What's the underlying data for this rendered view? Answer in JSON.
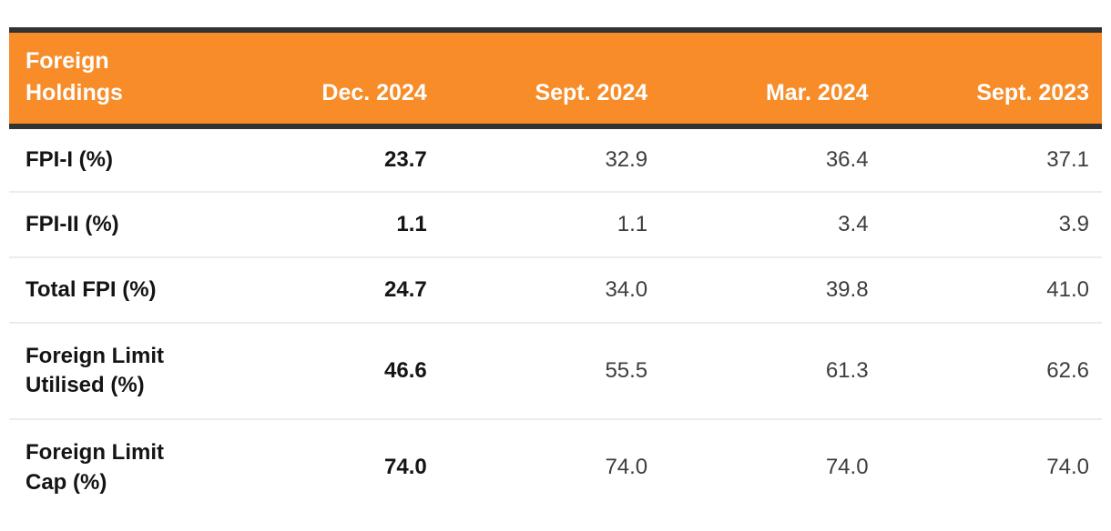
{
  "colors": {
    "header_bg": "#F78C28",
    "header_border": "#333333",
    "row_divider": "#ECECEC",
    "text_strong": "#141414",
    "text_regular": "#3D3D3D",
    "header_text": "#FFFFFF"
  },
  "table": {
    "header": [
      "Foreign Holdings",
      "Dec. 2024",
      "Sept. 2024",
      "Mar. 2024",
      "Sept. 2023"
    ],
    "rows": [
      {
        "label": "FPI-I (%)",
        "values": [
          "23.7",
          "32.9",
          "36.4",
          "37.1"
        ]
      },
      {
        "label": "FPI-II (%)",
        "values": [
          "1.1",
          "1.1",
          "3.4",
          "3.9"
        ]
      },
      {
        "label": "Total FPI (%)",
        "values": [
          "24.7",
          "34.0",
          "39.8",
          "41.0"
        ]
      },
      {
        "label": "Foreign Limit Utilised (%)",
        "values": [
          "46.6",
          "55.5",
          "61.3",
          "62.6"
        ]
      },
      {
        "label": "Foreign Limit Cap (%)",
        "values": [
          "74.0",
          "74.0",
          "74.0",
          "74.0"
        ]
      }
    ]
  },
  "chart_data": {
    "type": "table",
    "title": "Foreign Holdings",
    "columns": [
      "Foreign Holdings",
      "Dec. 2024",
      "Sept. 2024",
      "Mar. 2024",
      "Sept. 2023"
    ],
    "rows": [
      {
        "label": "FPI-I (%)",
        "values": [
          23.7,
          32.9,
          36.4,
          37.1
        ]
      },
      {
        "label": "FPI-II (%)",
        "values": [
          1.1,
          1.1,
          3.4,
          3.9
        ]
      },
      {
        "label": "Total FPI (%)",
        "values": [
          24.7,
          34.0,
          39.8,
          41.0
        ]
      },
      {
        "label": "Foreign Limit Utilised (%)",
        "values": [
          46.6,
          55.5,
          61.3,
          62.6
        ]
      },
      {
        "label": "Foreign Limit Cap (%)",
        "values": [
          74.0,
          74.0,
          74.0,
          74.0
        ]
      }
    ],
    "layout_hints": {
      "first_value_column_bold": true,
      "header_background": "#F78C28",
      "header_borders": "dark bar above and below header band",
      "value_alignment": "right",
      "unit": "percent"
    }
  }
}
